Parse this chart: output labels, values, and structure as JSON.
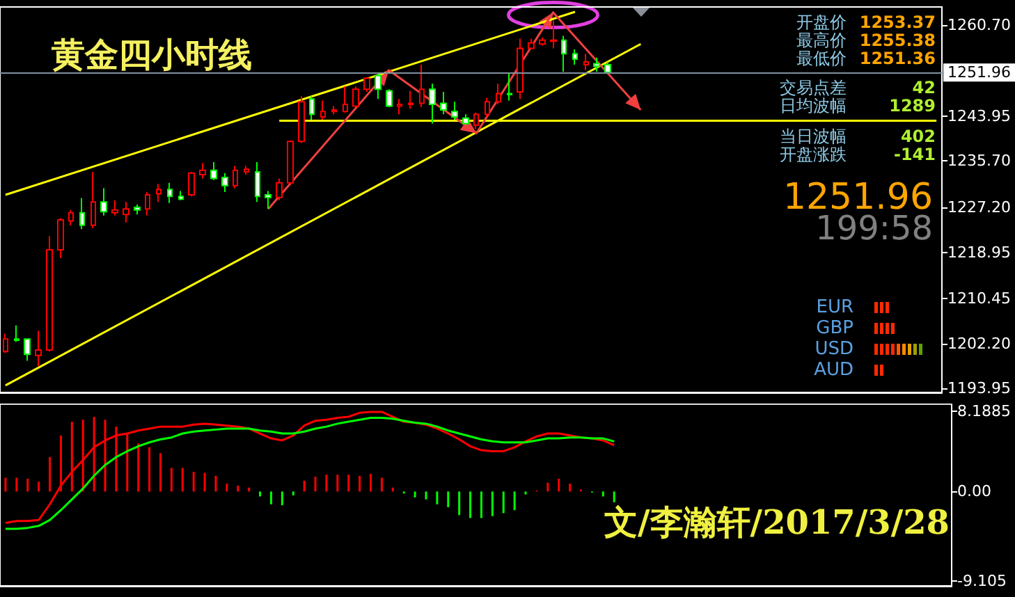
{
  "chart_data": [
    {
      "type": "candlestick",
      "title": "黄金四小时线",
      "categories": [
        null,
        null,
        null,
        null,
        null,
        null,
        null,
        null,
        null,
        null,
        null,
        null,
        null,
        null,
        null,
        null,
        null,
        null,
        null,
        null,
        null,
        null,
        null,
        null,
        null,
        null,
        null,
        null,
        null,
        null,
        null,
        null,
        null,
        null,
        null,
        null,
        null,
        null,
        null,
        null,
        null,
        null,
        null,
        null,
        null,
        null,
        null,
        null,
        null,
        null,
        null,
        null,
        null,
        null,
        null,
        null,
        null,
        null,
        null,
        null,
        null,
        null,
        null,
        null,
        null,
        null,
        null,
        null,
        null,
        null,
        null,
        null,
        null,
        null,
        null,
        null,
        null,
        null,
        null,
        null,
        null,
        null,
        null,
        null,
        null,
        null
      ],
      "ohlc": [
        [
          1200.7,
          1204.0,
          1200.5,
          1203.0
        ],
        [
          1203.0,
          1205.5,
          1202.5,
          1202.8
        ],
        [
          1203.0,
          1203.0,
          1199.0,
          1200.2
        ],
        [
          1200.0,
          1204.5,
          1198.0,
          1201.0
        ],
        [
          1201.0,
          1221.9,
          1200.7,
          1219.4
        ],
        [
          1219.4,
          1225.2,
          1217.9,
          1224.9
        ],
        [
          1224.7,
          1226.7,
          1223.9,
          1226.2
        ],
        [
          1226.2,
          1228.9,
          1223.2,
          1223.9
        ],
        [
          1223.9,
          1233.7,
          1223.4,
          1228.2
        ],
        [
          1228.2,
          1230.7,
          1225.7,
          1226.4
        ],
        [
          1226.2,
          1228.5,
          1225.7,
          1226.7
        ],
        [
          1225.9,
          1228.2,
          1224.4,
          1226.9
        ],
        [
          1227.2,
          1227.7,
          1225.9,
          1226.7
        ],
        [
          1226.9,
          1230.0,
          1225.7,
          1229.5
        ],
        [
          1229.7,
          1231.5,
          1228.2,
          1230.5
        ],
        [
          1230.5,
          1231.7,
          1228.0,
          1229.2
        ],
        [
          1229.2,
          1230.2,
          1228.5,
          1228.7
        ],
        [
          1229.5,
          1233.7,
          1229.2,
          1233.5
        ],
        [
          1233.2,
          1235.3,
          1232.5,
          1234.0
        ],
        [
          1234.0,
          1235.5,
          1232.2,
          1232.5
        ],
        [
          1232.7,
          1233.5,
          1230.0,
          1231.2
        ],
        [
          1231.2,
          1234.8,
          1230.7,
          1234.0
        ],
        [
          1233.7,
          1234.8,
          1233.2,
          1234.2
        ],
        [
          1233.7,
          1235.5,
          1228.2,
          1229.2
        ],
        [
          1229.5,
          1230.2,
          1226.9,
          1229.0
        ],
        [
          1229.0,
          1232.5,
          1228.5,
          1231.7
        ],
        [
          1231.7,
          1239.5,
          1231.5,
          1239.3
        ],
        [
          1239.3,
          1247.6,
          1239.0,
          1246.6
        ],
        [
          1247.1,
          1247.6,
          1243.3,
          1244.3
        ],
        [
          1243.8,
          1246.8,
          1243.3,
          1244.8
        ],
        [
          1244.8,
          1245.8,
          1244.3,
          1245.1
        ],
        [
          1244.8,
          1249.4,
          1244.6,
          1246.1
        ],
        [
          1245.8,
          1249.4,
          1245.6,
          1248.9
        ],
        [
          1248.9,
          1251.1,
          1248.4,
          1250.9
        ],
        [
          1251.4,
          1251.9,
          1247.1,
          1248.9
        ],
        [
          1248.6,
          1248.9,
          1245.6,
          1245.8
        ],
        [
          1245.8,
          1247.1,
          1244.3,
          1246.1
        ],
        [
          1246.1,
          1248.6,
          1245.3,
          1246.3
        ],
        [
          1246.3,
          1253.4,
          1245.6,
          1248.9
        ],
        [
          1248.9,
          1249.9,
          1242.6,
          1246.1
        ],
        [
          1246.3,
          1248.4,
          1244.3,
          1245.1
        ],
        [
          1244.8,
          1246.6,
          1243.3,
          1243.8
        ],
        [
          1243.6,
          1244.3,
          1242.3,
          1242.6
        ],
        [
          1242.3,
          1244.6,
          1241.6,
          1244.3
        ],
        [
          1244.3,
          1247.3,
          1243.8,
          1246.6
        ],
        [
          1246.6,
          1249.9,
          1246.1,
          1248.1
        ],
        [
          1248.1,
          1251.9,
          1246.8,
          1247.9
        ],
        [
          1248.4,
          1258.2,
          1247.1,
          1256.4
        ],
        [
          1256.4,
          1258.2,
          1256.2,
          1257.4
        ],
        [
          1257.2,
          1258.4,
          1256.9,
          1257.9
        ],
        [
          1257.7,
          1261.5,
          1256.4,
          1257.9
        ],
        [
          1257.9,
          1258.7,
          1252.1,
          1255.4
        ],
        [
          1255.4,
          1256.2,
          1253.4,
          1254.4
        ],
        [
          1253.4,
          1255.4,
          1252.4,
          1253.9
        ],
        [
          1253.6,
          1254.7,
          1252.1,
          1253.1
        ],
        [
          1253.4,
          1253.9,
          1251.9,
          1252.0
        ],
        null,
        null,
        null,
        null,
        null,
        null,
        null,
        null,
        null,
        null,
        null,
        null,
        null,
        null,
        null,
        null,
        null,
        null,
        null,
        null,
        null,
        null,
        null,
        null,
        null,
        null,
        null,
        null,
        null,
        null
      ],
      "series": [
        {
          "type": "line",
          "color": "#ffff00",
          "values": [
            1229.5,
            null,
            null,
            null,
            null,
            null,
            null,
            null,
            null,
            null,
            null,
            null,
            null,
            null,
            null,
            null,
            null,
            null,
            null,
            null,
            null,
            null,
            null,
            null,
            null,
            null,
            null,
            null,
            null,
            null,
            null,
            null,
            null,
            null,
            null,
            null,
            null,
            null,
            null,
            null,
            null,
            null,
            null,
            null,
            null,
            null,
            null,
            null,
            null,
            null,
            null,
            null,
            1263.1,
            null,
            null,
            null,
            null,
            null,
            null,
            null,
            null,
            null,
            null,
            null,
            null,
            null,
            null,
            null,
            null,
            null,
            null,
            null,
            null,
            null,
            null,
            null,
            null,
            null,
            null,
            null,
            null,
            null,
            null,
            null,
            null,
            null
          ]
        },
        {
          "type": "line",
          "color": "#ffff00",
          "values": [
            1194.5,
            null,
            null,
            null,
            null,
            null,
            null,
            null,
            null,
            null,
            null,
            null,
            null,
            null,
            null,
            null,
            null,
            null,
            null,
            null,
            null,
            null,
            null,
            null,
            null,
            null,
            null,
            null,
            null,
            null,
            null,
            null,
            null,
            null,
            null,
            null,
            null,
            null,
            null,
            null,
            null,
            null,
            null,
            null,
            null,
            null,
            null,
            null,
            null,
            null,
            null,
            null,
            null,
            null,
            null,
            null,
            null,
            null,
            1257.2,
            null,
            null,
            null,
            null,
            null,
            null,
            null,
            null,
            null,
            null,
            null,
            null,
            null,
            null,
            null,
            null,
            null,
            null,
            null,
            null,
            null,
            null,
            null,
            null,
            null,
            null,
            null
          ]
        },
        {
          "type": "line",
          "color": "#ffff00",
          "values": [
            null,
            null,
            null,
            null,
            null,
            null,
            null,
            null,
            null,
            null,
            null,
            null,
            null,
            null,
            null,
            null,
            null,
            null,
            null,
            null,
            null,
            null,
            null,
            null,
            null,
            1243.1,
            null,
            null,
            null,
            null,
            null,
            null,
            null,
            null,
            null,
            null,
            null,
            null,
            null,
            null,
            null,
            null,
            null,
            null,
            null,
            null,
            null,
            null,
            null,
            null,
            null,
            null,
            null,
            null,
            null,
            null,
            null,
            null,
            null,
            null,
            null,
            null,
            null,
            null,
            null,
            null,
            null,
            null,
            null,
            null,
            null,
            null,
            null,
            null,
            null,
            null,
            null,
            null,
            null,
            null,
            null,
            null,
            null,
            null,
            null,
            1243.1
          ]
        },
        {
          "type": "line",
          "color": "#f04040",
          "values": [
            null,
            null,
            null,
            null,
            null,
            null,
            null,
            null,
            null,
            null,
            null,
            null,
            null,
            null,
            null,
            null,
            null,
            null,
            null,
            null,
            null,
            null,
            null,
            null,
            1226.9,
            null,
            null,
            null,
            null,
            null,
            null,
            null,
            null,
            null,
            null,
            1252.4,
            null,
            null,
            null,
            null,
            null,
            null,
            null,
            1240.8,
            null,
            null,
            null,
            null,
            null,
            null,
            1263.0,
            null,
            null,
            null,
            null,
            null,
            null,
            null,
            1245.1,
            null,
            null,
            null,
            null,
            null,
            null,
            null,
            null,
            null,
            null,
            null,
            null,
            null,
            null,
            null,
            null,
            null,
            null,
            null,
            null,
            null,
            null,
            null,
            null,
            null,
            null,
            null
          ]
        }
      ],
      "ylim": [
        1193.2,
        1264.0
      ],
      "yticks": [
        1193.95,
        {
          "value": 1202.2,
          "label": "1202.20"
        },
        1210.45,
        1218.95,
        {
          "value": 1227.2,
          "label": "1227.20"
        },
        {
          "value": 1235.7,
          "label": "1235.70"
        },
        1243.95,
        {
          "value": 1260.7,
          "label": "1260.70"
        }
      ],
      "ref_lines": [
        {
          "axis": "y",
          "value": 1251.96,
          "label": "1251.96",
          "color": "#8090a0"
        }
      ],
      "annotations": [
        "开盘价",
        "1253.37",
        "最高价",
        "1255.38",
        "最低价",
        "1251.36",
        "交易点差",
        "42",
        "日均波幅",
        "1289",
        "当日波幅",
        "402",
        "开盘涨跌",
        "-141",
        "1251.96",
        "199:58",
        "EUR",
        "GBP",
        "USD",
        "AUD"
      ]
    },
    {
      "type": "bar",
      "categories": [
        null,
        null,
        null,
        null,
        null,
        null,
        null,
        null,
        null,
        null,
        null,
        null,
        null,
        null,
        null,
        null,
        null,
        null,
        null,
        null,
        null,
        null,
        null,
        null,
        null,
        null,
        null,
        null,
        null,
        null,
        null,
        null,
        null,
        null,
        null,
        null,
        null,
        null,
        null,
        null,
        null,
        null,
        null,
        null,
        null,
        null,
        null,
        null,
        null,
        null,
        null,
        null,
        null,
        null,
        null,
        null,
        null,
        null,
        null,
        null,
        null,
        null,
        null,
        null,
        null,
        null,
        null,
        null,
        null,
        null,
        null,
        null,
        null,
        null,
        null,
        null,
        null,
        null,
        null,
        null,
        null,
        null,
        null,
        null,
        null,
        null
      ],
      "series": [
        {
          "type": "bar",
          "values": [
            1.4,
            1.4,
            1.3,
            1.0,
            3.5,
            5.7,
            7.1,
            7.3,
            7.6,
            7.3,
            6.6,
            5.9,
            4.9,
            4.5,
            3.9,
            2.4,
            2.4,
            2.0,
            1.9,
            1.6,
            0.8,
            0.6,
            0.4,
            -0.5,
            -1.3,
            -1.4,
            -0.4,
            1.1,
            1.5,
            1.7,
            1.7,
            1.7,
            1.6,
            1.8,
            1.4,
            0.4,
            -0.2,
            -0.6,
            -0.8,
            -1.3,
            -1.6,
            -2.4,
            -2.7,
            -2.7,
            -2.5,
            -2.2,
            -1.9,
            -0.3,
            0.1,
            0.9,
            1.3,
            0.8,
            0.2,
            -0.1,
            -0.5,
            -1.1,
            null,
            null,
            null,
            null,
            null,
            null,
            null,
            null,
            null,
            null,
            null,
            null,
            null,
            null,
            null,
            null,
            null,
            null,
            null,
            null,
            null,
            null,
            null,
            null,
            null,
            null,
            null,
            null,
            null,
            null
          ],
          "colors": [
            "#ff0000",
            "#ff0000",
            "#ff0000",
            "#ff0000",
            "#ff0000",
            "#ff0000",
            "#ff0000",
            "#ff0000",
            "#ff0000",
            "#ff0000",
            "#ff0000",
            "#ff0000",
            "#ff0000",
            "#ff0000",
            "#ff0000",
            "#ff0000",
            "#ff0000",
            "#ff0000",
            "#ff0000",
            "#ff0000",
            "#ff0000",
            "#ff0000",
            "#ff0000",
            "#00ff00",
            "#00ff00",
            "#00ff00",
            "#00ff00",
            "#ff0000",
            "#ff0000",
            "#ff0000",
            "#ff0000",
            "#ff0000",
            "#ff0000",
            "#ff0000",
            "#ff0000",
            "#ff0000",
            "#00ff00",
            "#00ff00",
            "#00ff00",
            "#00ff00",
            "#00ff00",
            "#00ff00",
            "#00ff00",
            "#00ff00",
            "#00ff00",
            "#00ff00",
            "#00ff00",
            "#00ff00",
            "#ff0000",
            "#ff0000",
            "#ff0000",
            "#ff0000",
            "#ff0000",
            "#00ff00",
            "#00ff00",
            "#00ff00",
            null,
            null,
            null,
            null,
            null,
            null,
            null,
            null,
            null,
            null,
            null,
            null,
            null,
            null,
            null,
            null,
            null,
            null,
            null,
            null,
            null,
            null,
            null,
            null,
            null,
            null,
            null,
            null,
            null,
            null
          ]
        },
        {
          "type": "line",
          "color": "#ff0000",
          "values": [
            -3.2,
            -3.0,
            -3.0,
            -2.9,
            -1.3,
            0.6,
            2.0,
            3.2,
            4.5,
            5.2,
            5.7,
            5.9,
            6.2,
            6.4,
            6.6,
            6.6,
            6.6,
            6.8,
            6.9,
            6.8,
            6.7,
            6.6,
            6.4,
            5.9,
            5.4,
            5.2,
            5.7,
            6.7,
            7.2,
            7.3,
            7.5,
            7.6,
            8.0,
            8.1,
            8.1,
            7.6,
            7.1,
            7.0,
            6.8,
            6.4,
            5.9,
            5.3,
            4.6,
            4.2,
            4.1,
            4.1,
            4.5,
            5.1,
            5.6,
            5.9,
            5.9,
            5.7,
            5.5,
            5.4,
            5.2,
            4.7,
            null,
            null,
            null,
            null,
            null,
            null,
            null,
            null,
            null,
            null,
            null,
            null,
            null,
            null,
            null,
            null,
            null,
            null,
            null,
            null,
            null,
            null,
            null,
            null,
            null,
            null,
            null,
            null,
            null,
            null
          ]
        },
        {
          "type": "line",
          "color": "#00ff00",
          "values": [
            -3.8,
            -3.8,
            -3.7,
            -3.5,
            -2.9,
            -1.9,
            -0.8,
            0.3,
            1.6,
            2.7,
            3.5,
            4.1,
            4.6,
            5.0,
            5.3,
            5.5,
            5.9,
            6.1,
            6.2,
            6.3,
            6.4,
            6.4,
            6.4,
            6.2,
            6.1,
            5.9,
            5.9,
            6.1,
            6.4,
            6.6,
            6.9,
            7.1,
            7.3,
            7.5,
            7.5,
            7.4,
            7.2,
            7.0,
            6.9,
            6.6,
            6.2,
            5.9,
            5.6,
            5.3,
            5.1,
            5.0,
            5.0,
            5.0,
            5.2,
            5.4,
            5.4,
            5.5,
            5.5,
            5.4,
            5.4,
            5.1,
            null,
            null,
            null,
            null,
            null,
            null,
            null,
            null,
            null,
            null,
            null,
            null,
            null,
            null,
            null,
            null,
            null,
            null,
            null,
            null,
            null,
            null,
            null,
            null,
            null,
            null,
            null,
            null,
            null,
            null
          ]
        }
      ],
      "ylim": [
        -9.6,
        8.9
      ],
      "yticks": [
        8.1885,
        {
          "value": 0,
          "label": "0.00"
        },
        -9.105
      ],
      "annotations": [
        "文/李瀚轩/2017/3/28"
      ]
    }
  ]
}
